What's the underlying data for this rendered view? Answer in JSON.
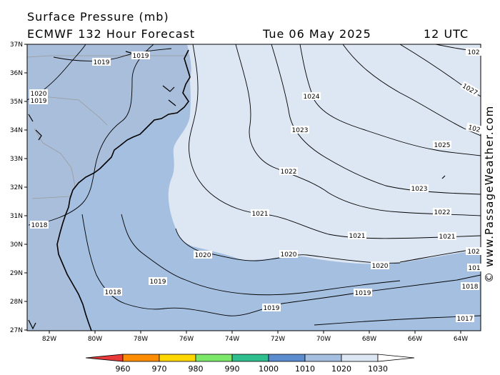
{
  "header": {
    "title": "Surface Pressure (mb)",
    "model": "ECMWF 132 Hour Forecast",
    "date": "Tue 06 May 2025",
    "time": "12 UTC"
  },
  "credit": "© www.PassageWeather.com",
  "axes": {
    "latitudes": [
      "37N",
      "36N",
      "35N",
      "34N",
      "33N",
      "32N",
      "31N",
      "30N",
      "29N",
      "28N",
      "27N"
    ],
    "longitudes": [
      "82W",
      "80W",
      "78W",
      "76W",
      "74W",
      "72W",
      "70W",
      "68W",
      "66W",
      "64W"
    ]
  },
  "isobar_labels": [
    {
      "id": "l1019a",
      "text": "1019"
    },
    {
      "id": "l1019b",
      "text": "1019"
    },
    {
      "id": "l1020a",
      "text": "1020"
    },
    {
      "id": "l1019c",
      "text": "1019"
    },
    {
      "id": "l1018a",
      "text": "1018"
    },
    {
      "id": "l1018b",
      "text": "1018"
    },
    {
      "id": "l1019d",
      "text": "1019"
    },
    {
      "id": "l1020b",
      "text": "1020"
    },
    {
      "id": "l1020c",
      "text": "1020"
    },
    {
      "id": "l1019e",
      "text": "1019"
    },
    {
      "id": "l1019f",
      "text": "1019"
    },
    {
      "id": "l1020d",
      "text": "1020"
    },
    {
      "id": "l1021a",
      "text": "1021"
    },
    {
      "id": "l1021b",
      "text": "1021"
    },
    {
      "id": "l1021c",
      "text": "1021"
    },
    {
      "id": "l1022a",
      "text": "1022"
    },
    {
      "id": "l1022b",
      "text": "1022"
    },
    {
      "id": "l1023a",
      "text": "1023"
    },
    {
      "id": "l1023b",
      "text": "1023"
    },
    {
      "id": "l1024a",
      "text": "1024"
    },
    {
      "id": "l1025a",
      "text": "1025"
    },
    {
      "id": "l102a",
      "text": "102"
    },
    {
      "id": "l1027",
      "text": "1027"
    },
    {
      "id": "l102b",
      "text": "102"
    },
    {
      "id": "l102c",
      "text": "102"
    },
    {
      "id": "l101",
      "text": "101"
    },
    {
      "id": "l1018c",
      "text": "1018"
    },
    {
      "id": "l1017",
      "text": "1017"
    }
  ],
  "legend": {
    "ticks": [
      "960",
      "970",
      "980",
      "990",
      "1000",
      "1010",
      "1020",
      "1030"
    ],
    "colors": [
      "#e83a3a",
      "#ff8c00",
      "#ffd700",
      "#7be86a",
      "#2fbf8f",
      "#5b8ccf",
      "#a5bfe0",
      "#dde6f3"
    ]
  },
  "colors": {
    "fill_1010_1020": "#a5bfe0",
    "fill_1020_1030": "#dde6f3",
    "coast": "#000000",
    "isobar": "#000000"
  }
}
